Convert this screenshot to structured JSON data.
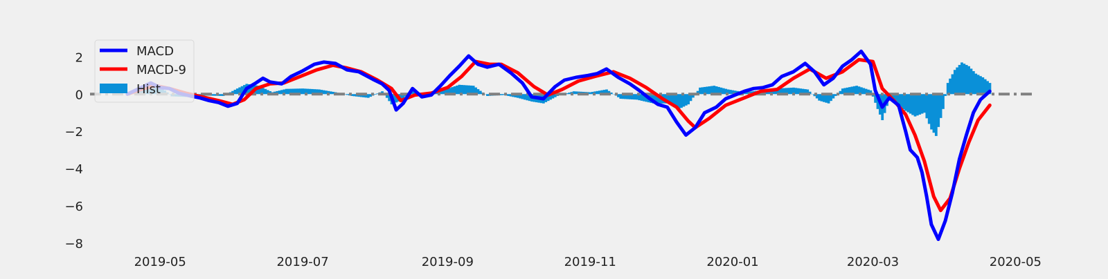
{
  "chart_data": {
    "type": "line",
    "x_type": "date",
    "series": [
      {
        "name": "MACD",
        "kind": "line",
        "color": "#0000ff",
        "points": [
          [
            "2019-04-17",
            0.0
          ],
          [
            "2019-04-22",
            0.3
          ],
          [
            "2019-04-27",
            0.6
          ],
          [
            "2019-05-01",
            0.35
          ],
          [
            "2019-05-05",
            0.3
          ],
          [
            "2019-05-09",
            0.05
          ],
          [
            "2019-05-14",
            -0.1
          ],
          [
            "2019-05-18",
            -0.2
          ],
          [
            "2019-05-22",
            -0.35
          ],
          [
            "2019-05-26",
            -0.45
          ],
          [
            "2019-05-30",
            -0.65
          ],
          [
            "2019-06-03",
            -0.5
          ],
          [
            "2019-06-07",
            0.3
          ],
          [
            "2019-06-11",
            0.6
          ],
          [
            "2019-06-14",
            0.85
          ],
          [
            "2019-06-17",
            0.65
          ],
          [
            "2019-06-22",
            0.55
          ],
          [
            "2019-06-26",
            0.95
          ],
          [
            "2019-07-01",
            1.25
          ],
          [
            "2019-07-06",
            1.6
          ],
          [
            "2019-07-10",
            1.72
          ],
          [
            "2019-07-15",
            1.65
          ],
          [
            "2019-07-20",
            1.3
          ],
          [
            "2019-07-25",
            1.2
          ],
          [
            "2019-07-31",
            0.8
          ],
          [
            "2019-08-04",
            0.55
          ],
          [
            "2019-08-07",
            0.2
          ],
          [
            "2019-08-10",
            -0.85
          ],
          [
            "2019-08-13",
            -0.5
          ],
          [
            "2019-08-17",
            0.3
          ],
          [
            "2019-08-21",
            -0.15
          ],
          [
            "2019-08-25",
            -0.05
          ],
          [
            "2019-08-29",
            0.45
          ],
          [
            "2019-09-02",
            1.0
          ],
          [
            "2019-09-06",
            1.5
          ],
          [
            "2019-09-10",
            2.05
          ],
          [
            "2019-09-14",
            1.6
          ],
          [
            "2019-09-18",
            1.45
          ],
          [
            "2019-09-23",
            1.6
          ],
          [
            "2019-09-28",
            1.15
          ],
          [
            "2019-10-03",
            0.6
          ],
          [
            "2019-10-07",
            -0.15
          ],
          [
            "2019-10-12",
            -0.25
          ],
          [
            "2019-10-17",
            0.4
          ],
          [
            "2019-10-21",
            0.75
          ],
          [
            "2019-10-26",
            0.9
          ],
          [
            "2019-10-31",
            1.0
          ],
          [
            "2019-11-04",
            1.1
          ],
          [
            "2019-11-08",
            1.35
          ],
          [
            "2019-11-13",
            0.9
          ],
          [
            "2019-11-18",
            0.55
          ],
          [
            "2019-11-22",
            0.2
          ],
          [
            "2019-11-26",
            -0.2
          ],
          [
            "2019-11-30",
            -0.55
          ],
          [
            "2019-12-04",
            -0.7
          ],
          [
            "2019-12-08",
            -1.5
          ],
          [
            "2019-12-12",
            -2.2
          ],
          [
            "2019-12-16",
            -1.8
          ],
          [
            "2019-12-20",
            -1.0
          ],
          [
            "2019-12-25",
            -0.7
          ],
          [
            "2019-12-29",
            -0.25
          ],
          [
            "2020-01-02",
            -0.05
          ],
          [
            "2020-01-06",
            0.15
          ],
          [
            "2020-01-10",
            0.3
          ],
          [
            "2020-01-14",
            0.35
          ],
          [
            "2020-01-18",
            0.5
          ],
          [
            "2020-01-22",
            0.95
          ],
          [
            "2020-01-27",
            1.2
          ],
          [
            "2020-02-01",
            1.65
          ],
          [
            "2020-02-05",
            1.2
          ],
          [
            "2020-02-09",
            0.5
          ],
          [
            "2020-02-13",
            0.85
          ],
          [
            "2020-02-17",
            1.5
          ],
          [
            "2020-02-21",
            1.85
          ],
          [
            "2020-02-25",
            2.3
          ],
          [
            "2020-02-29",
            1.6
          ],
          [
            "2020-03-02",
            0.2
          ],
          [
            "2020-03-05",
            -0.7
          ],
          [
            "2020-03-08",
            -0.2
          ],
          [
            "2020-03-12",
            -0.6
          ],
          [
            "2020-03-15",
            -2.0
          ],
          [
            "2020-03-17",
            -3.0
          ],
          [
            "2020-03-20",
            -3.4
          ],
          [
            "2020-03-22",
            -4.2
          ],
          [
            "2020-03-24",
            -5.5
          ],
          [
            "2020-03-26",
            -7.0
          ],
          [
            "2020-03-29",
            -7.8
          ],
          [
            "2020-04-01",
            -6.8
          ],
          [
            "2020-04-04",
            -5.3
          ],
          [
            "2020-04-07",
            -3.5
          ],
          [
            "2020-04-10",
            -2.2
          ],
          [
            "2020-04-13",
            -1.0
          ],
          [
            "2020-04-16",
            -0.3
          ],
          [
            "2020-04-20",
            0.15
          ]
        ]
      },
      {
        "name": "MACD-9",
        "kind": "line",
        "color": "#ff0000",
        "points": [
          [
            "2019-04-17",
            0.0
          ],
          [
            "2019-04-24",
            0.3
          ],
          [
            "2019-04-29",
            0.45
          ],
          [
            "2019-05-05",
            0.3
          ],
          [
            "2019-05-12",
            0.05
          ],
          [
            "2019-05-19",
            -0.15
          ],
          [
            "2019-05-26",
            -0.35
          ],
          [
            "2019-06-01",
            -0.55
          ],
          [
            "2019-06-06",
            -0.3
          ],
          [
            "2019-06-11",
            0.3
          ],
          [
            "2019-06-17",
            0.55
          ],
          [
            "2019-06-23",
            0.6
          ],
          [
            "2019-06-30",
            0.95
          ],
          [
            "2019-07-07",
            1.3
          ],
          [
            "2019-07-14",
            1.55
          ],
          [
            "2019-07-20",
            1.4
          ],
          [
            "2019-07-26",
            1.2
          ],
          [
            "2019-08-02",
            0.75
          ],
          [
            "2019-08-08",
            0.3
          ],
          [
            "2019-08-12",
            -0.35
          ],
          [
            "2019-08-18",
            -0.05
          ],
          [
            "2019-08-25",
            0.05
          ],
          [
            "2019-09-01",
            0.35
          ],
          [
            "2019-09-07",
            0.95
          ],
          [
            "2019-09-13",
            1.75
          ],
          [
            "2019-09-19",
            1.6
          ],
          [
            "2019-09-24",
            1.6
          ],
          [
            "2019-10-01",
            1.15
          ],
          [
            "2019-10-08",
            0.4
          ],
          [
            "2019-10-14",
            -0.05
          ],
          [
            "2019-10-20",
            0.25
          ],
          [
            "2019-10-27",
            0.7
          ],
          [
            "2019-11-03",
            0.95
          ],
          [
            "2019-11-11",
            1.2
          ],
          [
            "2019-11-18",
            0.85
          ],
          [
            "2019-11-25",
            0.35
          ],
          [
            "2019-12-02",
            -0.25
          ],
          [
            "2019-12-08",
            -0.7
          ],
          [
            "2019-12-13",
            -1.45
          ],
          [
            "2019-12-16",
            -1.8
          ],
          [
            "2019-12-22",
            -1.3
          ],
          [
            "2019-12-29",
            -0.6
          ],
          [
            "2020-01-06",
            -0.2
          ],
          [
            "2020-01-13",
            0.15
          ],
          [
            "2020-01-20",
            0.25
          ],
          [
            "2020-01-27",
            0.85
          ],
          [
            "2020-02-03",
            1.35
          ],
          [
            "2020-02-10",
            0.85
          ],
          [
            "2020-02-17",
            1.2
          ],
          [
            "2020-02-24",
            1.85
          ],
          [
            "2020-03-01",
            1.75
          ],
          [
            "2020-03-05",
            0.3
          ],
          [
            "2020-03-10",
            -0.35
          ],
          [
            "2020-03-15",
            -1.1
          ],
          [
            "2020-03-19",
            -2.2
          ],
          [
            "2020-03-23",
            -3.6
          ],
          [
            "2020-03-27",
            -5.5
          ],
          [
            "2020-03-30",
            -6.25
          ],
          [
            "2020-04-03",
            -5.6
          ],
          [
            "2020-04-07",
            -4.0
          ],
          [
            "2020-04-11",
            -2.6
          ],
          [
            "2020-04-15",
            -1.4
          ],
          [
            "2020-04-20",
            -0.6
          ]
        ]
      },
      {
        "name": "Hist",
        "kind": "bar",
        "color": "#0a90d8",
        "points": [
          [
            "2019-04-20",
            0.0
          ],
          [
            "2019-04-27",
            0.6
          ],
          [
            "2019-05-02",
            0.3
          ],
          [
            "2019-05-06",
            -0.12
          ],
          [
            "2019-05-12",
            -0.15
          ],
          [
            "2019-05-20",
            -0.08
          ],
          [
            "2019-05-28",
            -0.1
          ],
          [
            "2019-06-03",
            0.3
          ],
          [
            "2019-06-07",
            0.55
          ],
          [
            "2019-06-12",
            0.45
          ],
          [
            "2019-06-18",
            0.1
          ],
          [
            "2019-06-24",
            0.28
          ],
          [
            "2019-07-01",
            0.3
          ],
          [
            "2019-07-08",
            0.25
          ],
          [
            "2019-07-15",
            0.1
          ],
          [
            "2019-07-22",
            -0.1
          ],
          [
            "2019-07-29",
            -0.2
          ],
          [
            "2019-08-04",
            0.15
          ],
          [
            "2019-08-08",
            -0.55
          ],
          [
            "2019-08-12",
            -0.35
          ],
          [
            "2019-08-17",
            0.2
          ],
          [
            "2019-08-24",
            -0.1
          ],
          [
            "2019-08-31",
            0.25
          ],
          [
            "2019-09-06",
            0.5
          ],
          [
            "2019-09-12",
            0.45
          ],
          [
            "2019-09-18",
            -0.1
          ],
          [
            "2019-09-25",
            -0.05
          ],
          [
            "2019-10-01",
            -0.2
          ],
          [
            "2019-10-07",
            -0.4
          ],
          [
            "2019-10-12",
            -0.5
          ],
          [
            "2019-10-18",
            -0.1
          ],
          [
            "2019-10-25",
            0.15
          ],
          [
            "2019-11-01",
            0.1
          ],
          [
            "2019-11-08",
            0.25
          ],
          [
            "2019-11-14",
            -0.25
          ],
          [
            "2019-11-21",
            -0.3
          ],
          [
            "2019-11-28",
            -0.5
          ],
          [
            "2019-12-04",
            -0.5
          ],
          [
            "2019-12-09",
            -0.8
          ],
          [
            "2019-12-13",
            -0.55
          ],
          [
            "2019-12-18",
            0.35
          ],
          [
            "2019-12-24",
            0.45
          ],
          [
            "2019-12-30",
            0.25
          ],
          [
            "2020-01-06",
            0.1
          ],
          [
            "2020-01-13",
            0.2
          ],
          [
            "2020-01-20",
            0.3
          ],
          [
            "2020-01-27",
            0.35
          ],
          [
            "2020-02-02",
            0.25
          ],
          [
            "2020-02-07",
            -0.35
          ],
          [
            "2020-02-11",
            -0.5
          ],
          [
            "2020-02-17",
            0.3
          ],
          [
            "2020-02-23",
            0.45
          ],
          [
            "2020-02-29",
            0.2
          ],
          [
            "2020-03-03",
            -0.8
          ],
          [
            "2020-03-05",
            -1.4
          ],
          [
            "2020-03-08",
            -0.25
          ],
          [
            "2020-03-11",
            -0.55
          ],
          [
            "2020-03-15",
            -0.9
          ],
          [
            "2020-03-19",
            -1.2
          ],
          [
            "2020-03-23",
            -1.0
          ],
          [
            "2020-03-26",
            -1.9
          ],
          [
            "2020-03-28",
            -2.25
          ],
          [
            "2020-03-31",
            -0.8
          ],
          [
            "2020-04-02",
            0.6
          ],
          [
            "2020-04-05",
            1.3
          ],
          [
            "2020-04-08",
            1.7
          ],
          [
            "2020-04-11",
            1.5
          ],
          [
            "2020-04-14",
            1.1
          ],
          [
            "2020-04-17",
            0.9
          ],
          [
            "2020-04-20",
            0.6
          ]
        ]
      }
    ],
    "zero_line": {
      "value": 0,
      "color": "#808080",
      "style": "dash-dot"
    },
    "xlim": [
      "2019-04-01",
      "2020-05-08"
    ],
    "ylim": [
      -8.3,
      3.2
    ],
    "x_ticks": [
      "2019-05",
      "2019-07",
      "2019-09",
      "2019-11",
      "2020-01",
      "2020-03",
      "2020-05"
    ],
    "y_ticks": [
      "2",
      "0",
      "−2",
      "−4",
      "−6",
      "−8"
    ],
    "x_tick_dates": [
      "2019-05-01",
      "2019-07-01",
      "2019-09-01",
      "2019-11-01",
      "2020-01-01",
      "2020-03-01",
      "2020-05-01"
    ],
    "y_tick_values": [
      2,
      0,
      -2,
      -4,
      -6,
      -8
    ],
    "legend": {
      "position": "upper-left",
      "entries": [
        "MACD",
        "MACD-9",
        "Hist"
      ]
    },
    "grid": false,
    "background": "#f0f0f0"
  }
}
